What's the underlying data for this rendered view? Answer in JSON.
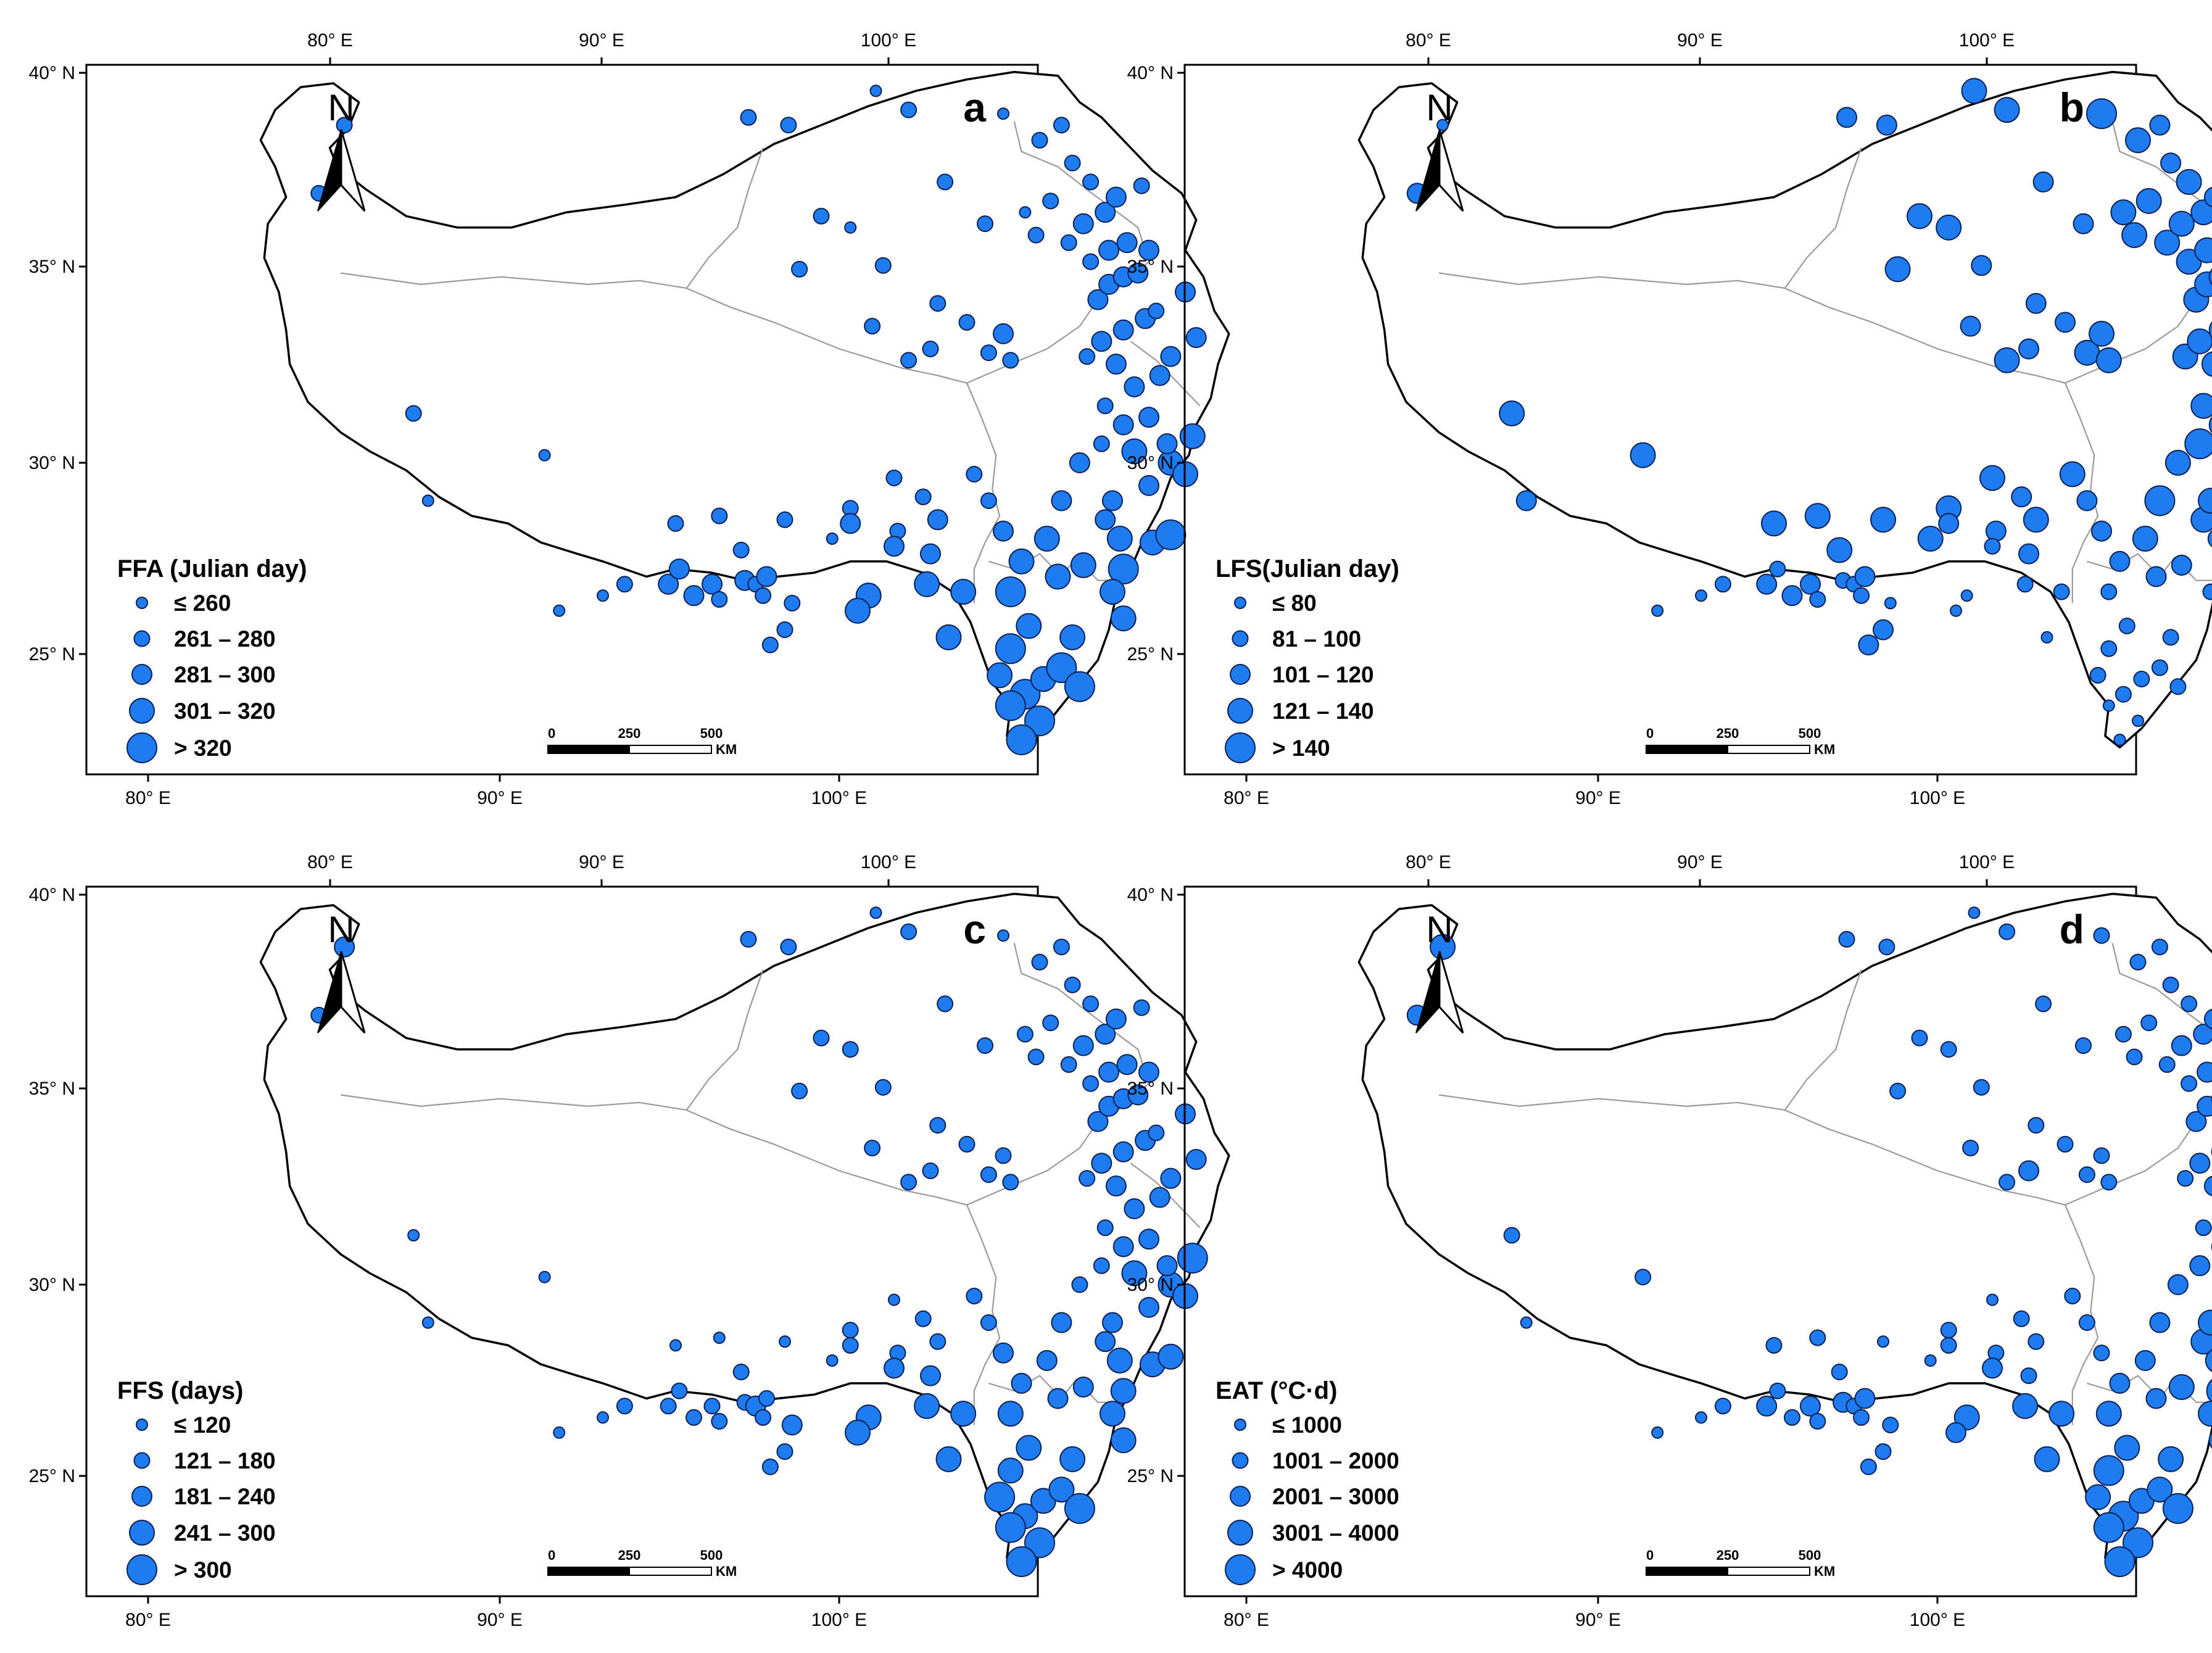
{
  "colors": {
    "station_fill": "#1e7cf0",
    "station_stroke": "#0b1f55",
    "boundary": "#000000",
    "province": "#9a9a9a"
  },
  "north_arrow": {
    "label": "N",
    "icon": "north-arrow-icon"
  },
  "scale_bar": {
    "ticks": [
      "0",
      "250",
      "500"
    ],
    "unit": "KM"
  },
  "axes": {
    "bottom_ticks": [
      "80° E",
      "90° E",
      "100° E"
    ],
    "left_ticks": [
      "40° N",
      "35° N",
      "30° N",
      "25° N"
    ],
    "top_ticks": [
      "80° E",
      "90° E",
      "100° E"
    ],
    "right_ticks": [
      "40° N",
      "35° N",
      "30° N"
    ]
  },
  "panels": [
    {
      "id": "a",
      "letter": "a",
      "legend_title": "FFA (Julian day)",
      "classes": [
        "≤ 260",
        "261 – 280",
        "281 – 300",
        "301 – 320",
        "> 320"
      ]
    },
    {
      "id": "b",
      "letter": "b",
      "legend_title": "LFS(Julian day)",
      "classes": [
        "≤ 80",
        "81 – 100",
        "101 – 120",
        "121 – 140",
        "> 140"
      ]
    },
    {
      "id": "c",
      "letter": "c",
      "legend_title": "FFS (days)",
      "classes": [
        "≤ 120",
        "121 – 180",
        "181 – 240",
        "241 – 300",
        "> 300"
      ]
    },
    {
      "id": "d",
      "letter": "d",
      "legend_title": "EAT (°C·d)",
      "classes": [
        "≤ 1000",
        "1001 – 2000",
        "2001 – 3000",
        "3001 – 4000",
        "> 4000"
      ]
    }
  ],
  "stations": [
    {
      "lon": 80.9,
      "lat": 38.9,
      "a": 1,
      "b": 0,
      "c": 2,
      "d": 3
    },
    {
      "lon": 80.2,
      "lat": 37.1,
      "a": 1,
      "b": 2,
      "c": 1,
      "d": 2
    },
    {
      "lon": 82.8,
      "lat": 31.3,
      "a": 1,
      "b": 3,
      "c": 0,
      "d": 1
    },
    {
      "lon": 86.4,
      "lat": 30.2,
      "a": 0,
      "b": 3,
      "c": 0,
      "d": 1
    },
    {
      "lon": 83.2,
      "lat": 29.0,
      "a": 0,
      "b": 2,
      "c": 0,
      "d": 0
    },
    {
      "lon": 86.8,
      "lat": 26.1,
      "a": 0,
      "b": 0,
      "c": 0,
      "d": 0
    },
    {
      "lon": 88.0,
      "lat": 26.5,
      "a": 0,
      "b": 0,
      "c": 0,
      "d": 0
    },
    {
      "lon": 88.6,
      "lat": 26.8,
      "a": 1,
      "b": 1,
      "c": 1,
      "d": 1
    },
    {
      "lon": 89.8,
      "lat": 26.8,
      "a": 2,
      "b": 2,
      "c": 1,
      "d": 2
    },
    {
      "lon": 90.0,
      "lat": 28.4,
      "a": 1,
      "b": 3,
      "c": 0,
      "d": 1
    },
    {
      "lon": 90.1,
      "lat": 27.2,
      "a": 2,
      "b": 1,
      "c": 1,
      "d": 1
    },
    {
      "lon": 90.5,
      "lat": 26.5,
      "a": 2,
      "b": 2,
      "c": 1,
      "d": 1
    },
    {
      "lon": 91.0,
      "lat": 26.8,
      "a": 2,
      "b": 2,
      "c": 1,
      "d": 2
    },
    {
      "lon": 91.2,
      "lat": 28.6,
      "a": 1,
      "b": 3,
      "c": 0,
      "d": 1
    },
    {
      "lon": 91.2,
      "lat": 26.4,
      "a": 1,
      "b": 1,
      "c": 1,
      "d": 1
    },
    {
      "lon": 91.8,
      "lat": 27.7,
      "a": 1,
      "b": 3,
      "c": 1,
      "d": 1
    },
    {
      "lon": 91.9,
      "lat": 26.9,
      "a": 2,
      "b": 1,
      "c": 1,
      "d": 2
    },
    {
      "lon": 92.2,
      "lat": 26.8,
      "a": 1,
      "b": 1,
      "c": 2,
      "d": 1
    },
    {
      "lon": 92.4,
      "lat": 26.5,
      "a": 1,
      "b": 1,
      "c": 1,
      "d": 1
    },
    {
      "lon": 92.5,
      "lat": 27.0,
      "a": 2,
      "b": 2,
      "c": 1,
      "d": 2
    },
    {
      "lon": 92.6,
      "lat": 25.2,
      "a": 1,
      "b": 2,
      "c": 1,
      "d": 1
    },
    {
      "lon": 93.0,
      "lat": 25.6,
      "a": 1,
      "b": 2,
      "c": 1,
      "d": 1
    },
    {
      "lon": 93.0,
      "lat": 28.5,
      "a": 1,
      "b": 3,
      "c": 0,
      "d": 0
    },
    {
      "lon": 93.2,
      "lat": 26.3,
      "a": 1,
      "b": 0,
      "c": 2,
      "d": 1
    },
    {
      "lon": 94.3,
      "lat": 28.0,
      "a": 0,
      "b": 3,
      "c": 0,
      "d": 0
    },
    {
      "lon": 94.8,
      "lat": 28.8,
      "a": 1,
      "b": 3,
      "c": 1,
      "d": 1
    },
    {
      "lon": 94.8,
      "lat": 28.4,
      "a": 2,
      "b": 2,
      "c": 1,
      "d": 1
    },
    {
      "lon": 95.3,
      "lat": 26.5,
      "a": 3,
      "b": 0,
      "c": 3,
      "d": 3
    },
    {
      "lon": 95.0,
      "lat": 26.1,
      "a": 3,
      "b": 0,
      "c": 3,
      "d": 2
    },
    {
      "lon": 95.7,
      "lat": 35.2,
      "a": 1,
      "b": 2,
      "c": 1,
      "d": 1
    },
    {
      "lon": 95.4,
      "lat": 33.6,
      "a": 1,
      "b": 2,
      "c": 1,
      "d": 1
    },
    {
      "lon": 93.4,
      "lat": 35.1,
      "a": 1,
      "b": 3,
      "c": 1,
      "d": 1
    },
    {
      "lon": 94.8,
      "lat": 36.2,
      "a": 0,
      "b": 3,
      "c": 1,
      "d": 1
    },
    {
      "lon": 97.0,
      "lat": 33.0,
      "a": 1,
      "b": 2,
      "c": 1,
      "d": 2
    },
    {
      "lon": 97.2,
      "lat": 34.2,
      "a": 1,
      "b": 2,
      "c": 1,
      "d": 1
    },
    {
      "lon": 96.4,
      "lat": 32.7,
      "a": 1,
      "b": 3,
      "c": 1,
      "d": 1
    },
    {
      "lon": 98.0,
      "lat": 33.7,
      "a": 1,
      "b": 2,
      "c": 1,
      "d": 1
    },
    {
      "lon": 98.6,
      "lat": 32.9,
      "a": 1,
      "b": 3,
      "c": 1,
      "d": 1
    },
    {
      "lon": 99.0,
      "lat": 33.4,
      "a": 2,
      "b": 3,
      "c": 1,
      "d": 1
    },
    {
      "lon": 99.2,
      "lat": 32.7,
      "a": 1,
      "b": 3,
      "c": 1,
      "d": 1
    },
    {
      "lon": 96.0,
      "lat": 29.6,
      "a": 1,
      "b": 3,
      "c": 0,
      "d": 0
    },
    {
      "lon": 96.8,
      "lat": 29.1,
      "a": 1,
      "b": 2,
      "c": 1,
      "d": 1
    },
    {
      "lon": 97.2,
      "lat": 28.5,
      "a": 2,
      "b": 3,
      "c": 1,
      "d": 1
    },
    {
      "lon": 96.1,
      "lat": 28.2,
      "a": 1,
      "b": 2,
      "c": 1,
      "d": 1
    },
    {
      "lon": 96.0,
      "lat": 27.8,
      "a": 2,
      "b": 1,
      "c": 2,
      "d": 2
    },
    {
      "lon": 97.0,
      "lat": 27.6,
      "a": 2,
      "b": 2,
      "c": 2,
      "d": 1
    },
    {
      "lon": 96.9,
      "lat": 26.8,
      "a": 3,
      "b": 1,
      "c": 3,
      "d": 3
    },
    {
      "lon": 97.9,
      "lat": 26.6,
      "a": 3,
      "b": 1,
      "c": 3,
      "d": 3
    },
    {
      "lon": 97.5,
      "lat": 25.4,
      "a": 3,
      "b": 0,
      "c": 3,
      "d": 3
    },
    {
      "lon": 98.2,
      "lat": 29.7,
      "a": 1,
      "b": 3,
      "c": 1,
      "d": 1
    },
    {
      "lon": 98.6,
      "lat": 29.0,
      "a": 1,
      "b": 2,
      "c": 1,
      "d": 1
    },
    {
      "lon": 99.0,
      "lat": 28.2,
      "a": 2,
      "b": 2,
      "c": 2,
      "d": 1
    },
    {
      "lon": 99.5,
      "lat": 27.4,
      "a": 3,
      "b": 2,
      "c": 2,
      "d": 2
    },
    {
      "lon": 99.2,
      "lat": 26.6,
      "a": 4,
      "b": 1,
      "c": 3,
      "d": 3
    },
    {
      "lon": 99.7,
      "lat": 25.7,
      "a": 3,
      "b": 1,
      "c": 3,
      "d": 3
    },
    {
      "lon": 99.2,
      "lat": 25.1,
      "a": 4,
      "b": 1,
      "c": 3,
      "d": 4
    },
    {
      "lon": 98.9,
      "lat": 24.4,
      "a": 3,
      "b": 1,
      "c": 4,
      "d": 3
    },
    {
      "lon": 99.6,
      "lat": 23.9,
      "a": 4,
      "b": 1,
      "c": 3,
      "d": 4
    },
    {
      "lon": 99.2,
      "lat": 23.6,
      "a": 4,
      "b": 0,
      "c": 4,
      "d": 4
    },
    {
      "lon": 100.0,
      "lat": 23.2,
      "a": 4,
      "b": 0,
      "c": 4,
      "d": 4
    },
    {
      "lon": 99.5,
      "lat": 22.7,
      "a": 4,
      "b": 0,
      "c": 4,
      "d": 4
    },
    {
      "lon": 100.1,
      "lat": 24.3,
      "a": 3,
      "b": 1,
      "c": 3,
      "d": 3
    },
    {
      "lon": 100.6,
      "lat": 24.6,
      "a": 4,
      "b": 1,
      "c": 3,
      "d": 3
    },
    {
      "lon": 100.9,
      "lat": 25.4,
      "a": 3,
      "b": 1,
      "c": 3,
      "d": 3
    },
    {
      "lon": 101.1,
      "lat": 24.1,
      "a": 4,
      "b": 1,
      "c": 4,
      "d": 4
    },
    {
      "lon": 100.5,
      "lat": 27.0,
      "a": 3,
      "b": 2,
      "c": 2,
      "d": 2
    },
    {
      "lon": 100.2,
      "lat": 28.0,
      "a": 3,
      "b": 3,
      "c": 2,
      "d": 2
    },
    {
      "lon": 100.6,
      "lat": 29.0,
      "a": 2,
      "b": 4,
      "c": 2,
      "d": 2
    },
    {
      "lon": 101.2,
      "lat": 27.3,
      "a": 3,
      "b": 2,
      "c": 2,
      "d": 3
    },
    {
      "lon": 101.8,
      "lat": 28.5,
      "a": 2,
      "b": 3,
      "c": 2,
      "d": 3
    },
    {
      "lon": 101.1,
      "lat": 30.0,
      "a": 2,
      "b": 3,
      "c": 1,
      "d": 2
    },
    {
      "lon": 101.7,
      "lat": 30.5,
      "a": 1,
      "b": 4,
      "c": 1,
      "d": 2
    },
    {
      "lon": 102.0,
      "lat": 29.0,
      "a": 2,
      "b": 3,
      "c": 2,
      "d": 3
    },
    {
      "lon": 102.2,
      "lat": 28.0,
      "a": 3,
      "b": 2,
      "c": 3,
      "d": 3
    },
    {
      "lon": 102.3,
      "lat": 27.2,
      "a": 4,
      "b": 1,
      "c": 3,
      "d": 4
    },
    {
      "lon": 102.0,
      "lat": 26.6,
      "a": 3,
      "b": 1,
      "c": 3,
      "d": 3
    },
    {
      "lon": 102.3,
      "lat": 25.9,
      "a": 3,
      "b": 1,
      "c": 3,
      "d": 3
    },
    {
      "lon": 103.1,
      "lat": 27.9,
      "a": 3,
      "b": 1,
      "c": 3,
      "d": 3
    },
    {
      "lon": 103.6,
      "lat": 28.1,
      "a": 4,
      "b": 1,
      "c": 3,
      "d": 4
    },
    {
      "lon": 103.0,
      "lat": 29.4,
      "a": 2,
      "b": 2,
      "c": 2,
      "d": 3
    },
    {
      "lon": 103.6,
      "lat": 30.0,
      "a": 3,
      "b": 1,
      "c": 3,
      "d": 4
    },
    {
      "lon": 104.0,
      "lat": 29.7,
      "a": 3,
      "b": 2,
      "c": 3,
      "d": 3
    },
    {
      "lon": 103.5,
      "lat": 30.5,
      "a": 2,
      "b": 2,
      "c": 2,
      "d": 3
    },
    {
      "lon": 104.2,
      "lat": 30.7,
      "a": 3,
      "b": 2,
      "c": 4,
      "d": 4
    },
    {
      "lon": 103.0,
      "lat": 31.2,
      "a": 2,
      "b": 3,
      "c": 2,
      "d": 2
    },
    {
      "lon": 102.3,
      "lat": 31.0,
      "a": 2,
      "b": 3,
      "c": 2,
      "d": 2
    },
    {
      "lon": 101.8,
      "lat": 31.5,
      "a": 1,
      "b": 3,
      "c": 1,
      "d": 1
    },
    {
      "lon": 102.6,
      "lat": 32.0,
      "a": 2,
      "b": 3,
      "c": 2,
      "d": 2
    },
    {
      "lon": 103.3,
      "lat": 32.3,
      "a": 2,
      "b": 2,
      "c": 2,
      "d": 2
    },
    {
      "lon": 103.6,
      "lat": 32.8,
      "a": 2,
      "b": 2,
      "c": 2,
      "d": 2
    },
    {
      "lon": 102.1,
      "lat": 32.6,
      "a": 2,
      "b": 3,
      "c": 2,
      "d": 2
    },
    {
      "lon": 101.3,
      "lat": 32.8,
      "a": 1,
      "b": 3,
      "c": 1,
      "d": 1
    },
    {
      "lon": 101.7,
      "lat": 33.2,
      "a": 2,
      "b": 3,
      "c": 2,
      "d": 2
    },
    {
      "lon": 102.3,
      "lat": 33.5,
      "a": 2,
      "b": 3,
      "c": 2,
      "d": 2
    },
    {
      "lon": 102.9,
      "lat": 33.8,
      "a": 2,
      "b": 2,
      "c": 2,
      "d": 2
    },
    {
      "lon": 103.2,
      "lat": 34.0,
      "a": 1,
      "b": 2,
      "c": 1,
      "d": 1
    },
    {
      "lon": 101.6,
      "lat": 34.3,
      "a": 2,
      "b": 3,
      "c": 2,
      "d": 2
    },
    {
      "lon": 101.9,
      "lat": 34.7,
      "a": 2,
      "b": 3,
      "c": 2,
      "d": 2
    },
    {
      "lon": 102.3,
      "lat": 34.9,
      "a": 2,
      "b": 3,
      "c": 2,
      "d": 2
    },
    {
      "lon": 102.7,
      "lat": 35.0,
      "a": 2,
      "b": 2,
      "c": 2,
      "d": 2
    },
    {
      "lon": 101.4,
      "lat": 35.3,
      "a": 1,
      "b": 3,
      "c": 1,
      "d": 1
    },
    {
      "lon": 101.9,
      "lat": 35.6,
      "a": 2,
      "b": 3,
      "c": 2,
      "d": 2
    },
    {
      "lon": 102.4,
      "lat": 35.8,
      "a": 2,
      "b": 3,
      "c": 2,
      "d": 2
    },
    {
      "lon": 100.8,
      "lat": 35.8,
      "a": 1,
      "b": 3,
      "c": 1,
      "d": 1
    },
    {
      "lon": 101.2,
      "lat": 36.3,
      "a": 2,
      "b": 3,
      "c": 2,
      "d": 2
    },
    {
      "lon": 101.8,
      "lat": 36.6,
      "a": 2,
      "b": 3,
      "c": 2,
      "d": 2
    },
    {
      "lon": 102.1,
      "lat": 37.0,
      "a": 2,
      "b": 2,
      "c": 2,
      "d": 2
    },
    {
      "lon": 102.8,
      "lat": 37.3,
      "a": 1,
      "b": 2,
      "c": 1,
      "d": 1
    },
    {
      "lon": 101.4,
      "lat": 37.4,
      "a": 1,
      "b": 3,
      "c": 1,
      "d": 1
    },
    {
      "lon": 100.9,
      "lat": 37.9,
      "a": 1,
      "b": 2,
      "c": 1,
      "d": 1
    },
    {
      "lon": 100.0,
      "lat": 38.5,
      "a": 1,
      "b": 3,
      "c": 1,
      "d": 1
    },
    {
      "lon": 100.6,
      "lat": 38.9,
      "a": 1,
      "b": 2,
      "c": 1,
      "d": 1
    },
    {
      "lon": 100.3,
      "lat": 36.9,
      "a": 1,
      "b": 3,
      "c": 1,
      "d": 1
    },
    {
      "lon": 99.6,
      "lat": 36.6,
      "a": 0,
      "b": 3,
      "c": 1,
      "d": 1
    },
    {
      "lon": 98.5,
      "lat": 36.3,
      "a": 1,
      "b": 2,
      "c": 1,
      "d": 1
    },
    {
      "lon": 97.4,
      "lat": 37.4,
      "a": 1,
      "b": 2,
      "c": 1,
      "d": 1
    },
    {
      "lon": 99.9,
      "lat": 36.0,
      "a": 1,
      "b": 3,
      "c": 1,
      "d": 1
    },
    {
      "lon": 99.0,
      "lat": 39.2,
      "a": 0,
      "b": 4,
      "c": 0,
      "d": 1
    },
    {
      "lon": 96.4,
      "lat": 39.3,
      "a": 1,
      "b": 3,
      "c": 1,
      "d": 1
    },
    {
      "lon": 93.1,
      "lat": 38.9,
      "a": 1,
      "b": 2,
      "c": 1,
      "d": 1
    },
    {
      "lon": 92.0,
      "lat": 39.1,
      "a": 1,
      "b": 2,
      "c": 1,
      "d": 1
    },
    {
      "lon": 94.0,
      "lat": 36.5,
      "a": 1,
      "b": 3,
      "c": 1,
      "d": 1
    },
    {
      "lon": 95.5,
      "lat": 39.8,
      "a": 0,
      "b": 3,
      "c": 0,
      "d": 0
    },
    {
      "lon": 103.0,
      "lat": 35.6,
      "a": 2,
      "b": 2,
      "c": 2,
      "d": 2
    },
    {
      "lon": 104.3,
      "lat": 33.3,
      "a": 2,
      "b": 2,
      "c": 2,
      "d": 2
    },
    {
      "lon": 104.0,
      "lat": 34.5,
      "a": 2,
      "b": 2,
      "c": 2,
      "d": 2
    },
    {
      "lon": 102.6,
      "lat": 30.3,
      "a": 3,
      "b": 2,
      "c": 3,
      "d": 3
    }
  ]
}
